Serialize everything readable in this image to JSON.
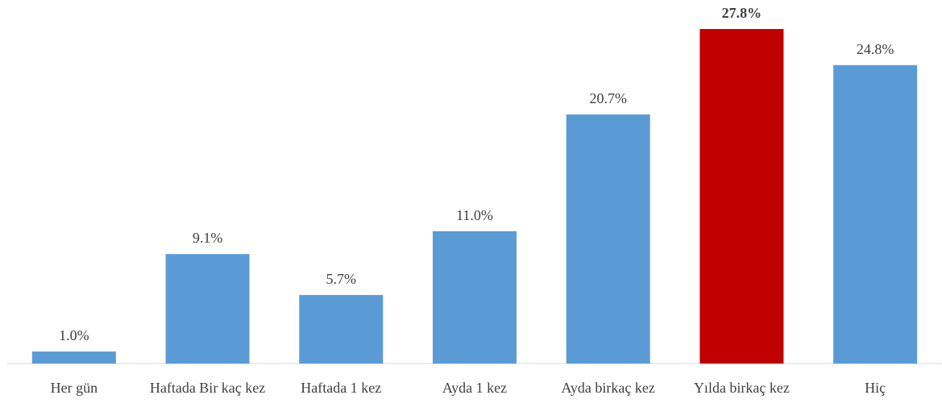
{
  "chart_data": {
    "type": "bar",
    "categories": [
      "Her gün",
      "Haftada Bir kaç kez",
      "Haftada 1 kez",
      "Ayda 1 kez",
      "Ayda birkaç kez",
      "Yılda birkaç kez",
      "Hiç"
    ],
    "values": [
      1.0,
      9.1,
      5.7,
      11.0,
      20.7,
      27.8,
      24.8
    ],
    "value_labels": [
      "1.0%",
      "9.1%",
      "5.7%",
      "11.0%",
      "20.7%",
      "27.8%",
      "24.8%"
    ],
    "colors": [
      "#5b9bd5",
      "#5b9bd5",
      "#5b9bd5",
      "#5b9bd5",
      "#5b9bd5",
      "#c00000",
      "#5b9bd5"
    ],
    "highlight": 5
  }
}
